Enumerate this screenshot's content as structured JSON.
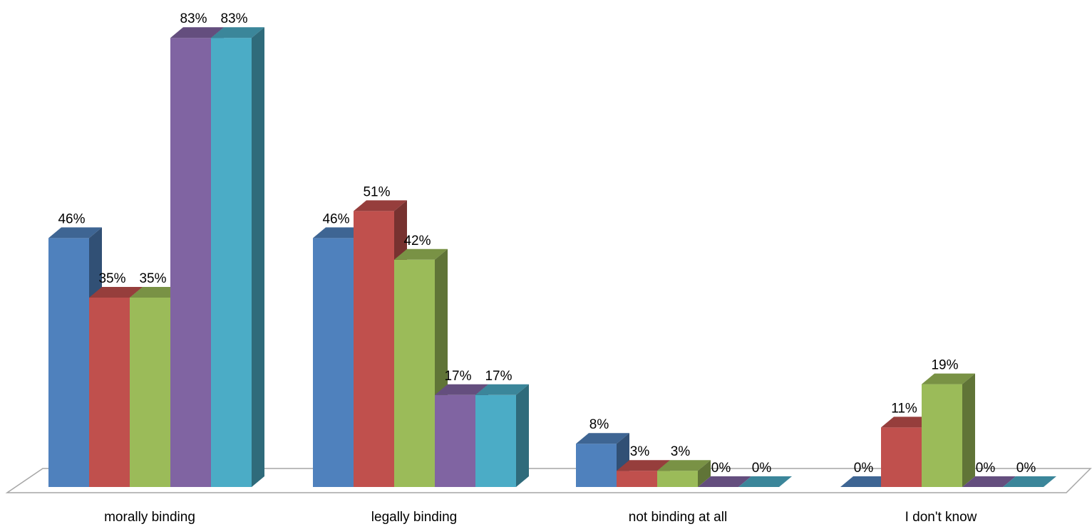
{
  "chart_data": {
    "type": "bar",
    "style": "3d-clustered-column",
    "categories": [
      "morally binding",
      "legally binding",
      "not binding at all",
      "I don't know"
    ],
    "series": [
      {
        "values": [
          46,
          46,
          8,
          0
        ],
        "color": "#4F81BD"
      },
      {
        "values": [
          35,
          51,
          3,
          11
        ],
        "color": "#C0504D"
      },
      {
        "values": [
          35,
          42,
          3,
          19
        ],
        "color": "#9BBB59"
      },
      {
        "values": [
          83,
          17,
          0,
          0
        ],
        "color": "#8064A2"
      },
      {
        "values": [
          83,
          17,
          0,
          0
        ],
        "color": "#4BACC6"
      }
    ],
    "data_labels": [
      [
        "46%",
        "46%",
        "8%",
        "0%"
      ],
      [
        "35%",
        "51%",
        "3%",
        "11%"
      ],
      [
        "35%",
        "42%",
        "3%",
        "19%"
      ],
      [
        "83%",
        "17%",
        "0%",
        "0%"
      ],
      [
        "83%",
        "17%",
        "0%",
        "0%"
      ]
    ],
    "title": "",
    "xlabel": "",
    "ylabel": "",
    "ylim": [
      0,
      90
    ],
    "grid": false,
    "legend": "none"
  }
}
